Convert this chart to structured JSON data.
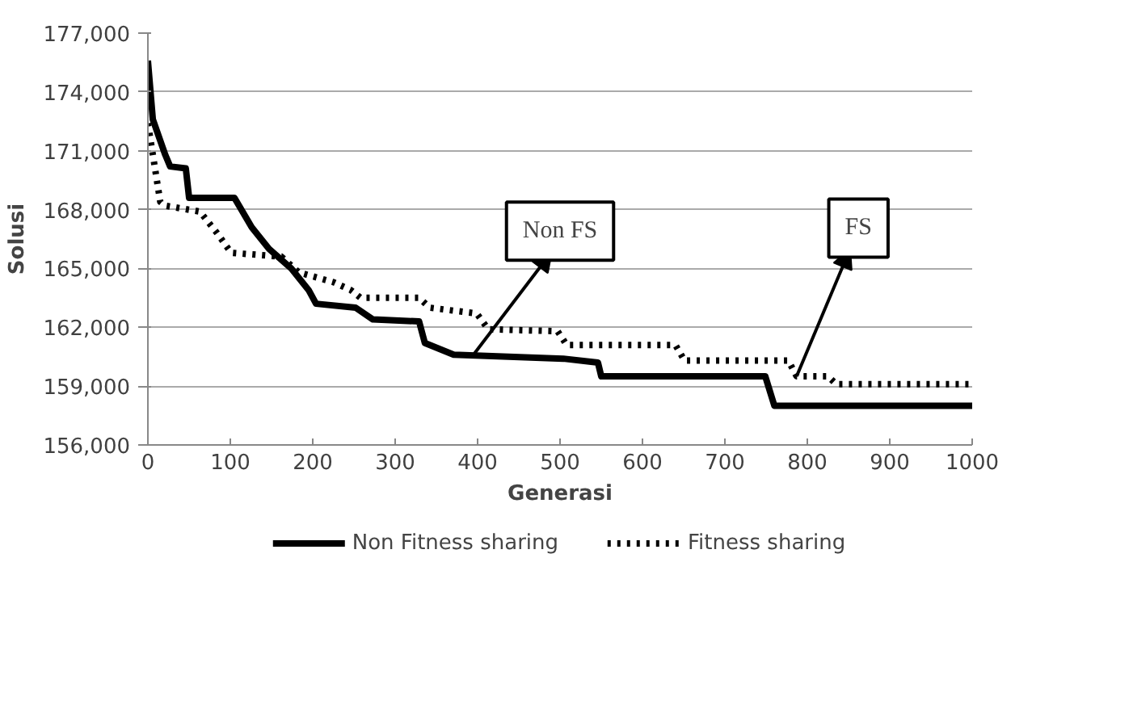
{
  "chart_data": {
    "type": "line",
    "xlabel": "Generasi",
    "ylabel": "Solusi",
    "x": [
      0,
      6,
      21,
      27,
      46,
      50,
      105,
      126,
      147,
      174,
      195,
      204,
      252,
      273,
      329,
      336,
      371,
      504,
      546,
      550,
      749,
      760,
      1000
    ],
    "series": [
      {
        "name": "Non Fitness sharing",
        "color": "#000000",
        "line_style": "solid",
        "values": [
          175600,
          172600,
          170800,
          170200,
          170100,
          168600,
          168600,
          167100,
          166000,
          165000,
          163900,
          163200,
          163000,
          162400,
          162300,
          161200,
          160600,
          160400,
          160200,
          159500,
          159500,
          158000,
          158000
        ]
      },
      {
        "name": "Fitness sharing",
        "color": "#000000",
        "line_style": "dotted",
        "x": [
          0,
          15,
          21,
          63,
          84,
          101,
          162,
          183,
          225,
          246,
          258,
          329,
          342,
          399,
          413,
          497,
          508,
          640,
          651,
          777,
          787,
          825,
          835,
          1000
        ],
        "values": [
          172400,
          168400,
          168200,
          167900,
          166800,
          165800,
          165600,
          164800,
          164300,
          163900,
          163500,
          163500,
          163000,
          162700,
          161900,
          161800,
          161100,
          161100,
          160300,
          160300,
          159500,
          159500,
          159100,
          159100
        ]
      }
    ],
    "xlim": [
      0,
      1000
    ],
    "xticks": [
      0,
      100,
      200,
      300,
      400,
      500,
      600,
      700,
      800,
      900,
      1000
    ],
    "ylim": [
      156000,
      177000
    ],
    "yticks": [
      {
        "value": 156000,
        "label": "156,000"
      },
      {
        "value": 159000,
        "label": "159,000"
      },
      {
        "value": 162000,
        "label": "162,000"
      },
      {
        "value": 165000,
        "label": "165,000"
      },
      {
        "value": 168000,
        "label": "168,000"
      },
      {
        "value": 171000,
        "label": "171,000"
      },
      {
        "value": 174000,
        "label": "174,000"
      },
      {
        "value": 177000,
        "label": "177,000"
      }
    ],
    "annotations": [
      {
        "text": "Non FS",
        "x": 395,
        "y": 160600
      },
      {
        "text": "FS",
        "x": 787,
        "y": 159500
      }
    ],
    "grid": "y",
    "legend": "bottom",
    "marker": "none"
  }
}
